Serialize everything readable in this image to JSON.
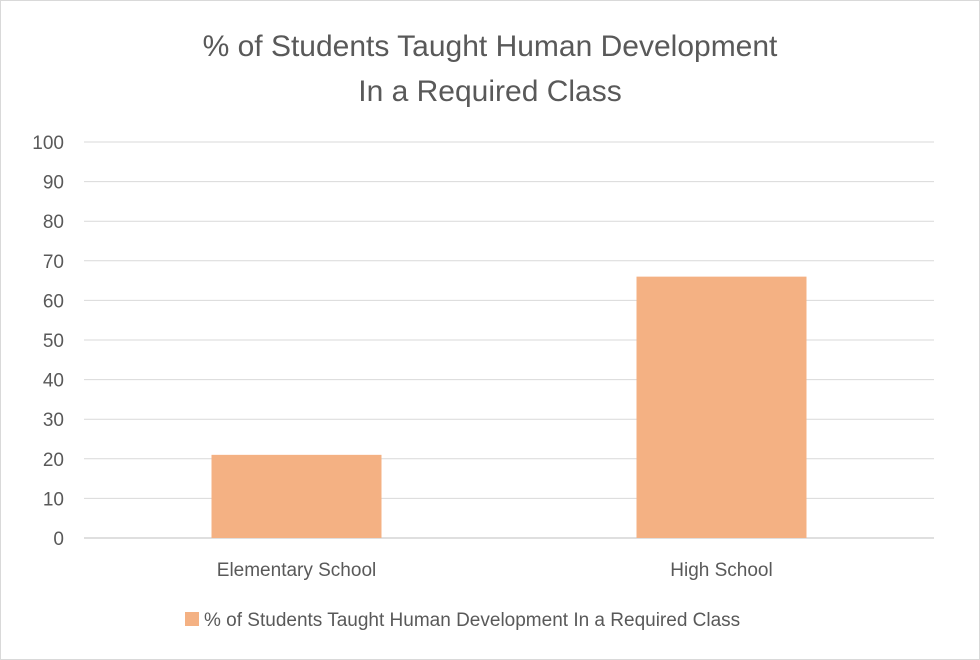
{
  "chart_data": {
    "type": "bar",
    "title_lines": [
      "% of Students Taught Human Development",
      "In a Required Class"
    ],
    "categories": [
      "Elementary School",
      "High School"
    ],
    "series": [
      {
        "name": "% of Students Taught Human Development In a Required Class",
        "color": "#f4b183",
        "values": [
          21,
          66
        ]
      }
    ],
    "y_ticks": [
      "0",
      "10",
      "20",
      "30",
      "40",
      "50",
      "60",
      "70",
      "80",
      "90",
      "100"
    ],
    "ylim": [
      0,
      100
    ],
    "grid": true,
    "legend_position": "bottom"
  }
}
